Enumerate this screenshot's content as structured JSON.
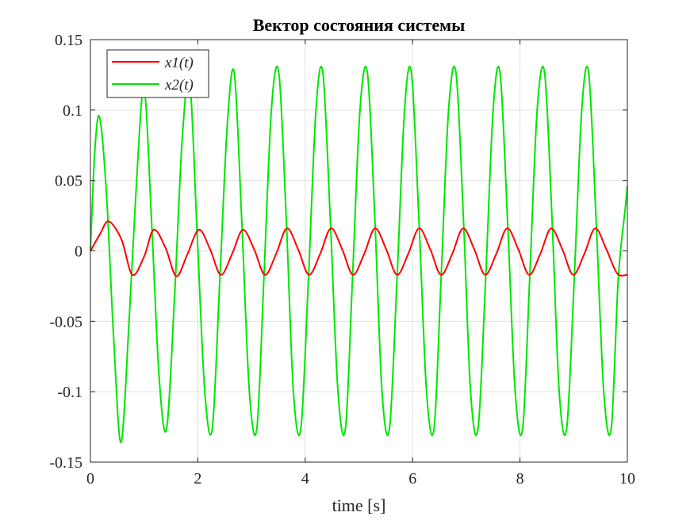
{
  "chart_data": {
    "type": "line",
    "title": "Вектор состояния системы",
    "xlabel": "time [s]",
    "ylabel": "",
    "xlim": [
      0,
      10
    ],
    "ylim": [
      -0.15,
      0.15
    ],
    "xticks": [
      0,
      2,
      4,
      6,
      8,
      10
    ],
    "xtick_labels": [
      "0",
      "2",
      "4",
      "6",
      "8",
      "10"
    ],
    "yticks": [
      -0.15,
      -0.1,
      -0.05,
      0,
      0.05,
      0.1,
      0.15
    ],
    "ytick_labels": [
      "-0.15",
      "-0.1",
      "-0.05",
      "0",
      "0.05",
      "0.1",
      "0.15"
    ],
    "grid": true,
    "legend": "top-left",
    "series": [
      {
        "name": "x1(t)",
        "color": "#ff0000",
        "x": [
          0,
          0.18,
          0.34,
          0.58,
          0.78,
          1.0,
          1.18,
          1.4,
          1.6,
          1.8,
          2.02,
          2.23,
          2.43,
          2.64,
          2.84,
          3.05,
          3.25,
          3.46,
          3.66,
          3.87,
          4.07,
          4.28,
          4.48,
          4.69,
          4.89,
          5.1,
          5.3,
          5.51,
          5.71,
          5.92,
          6.12,
          6.33,
          6.53,
          6.74,
          6.94,
          7.15,
          7.35,
          7.56,
          7.76,
          7.97,
          8.17,
          8.38,
          8.58,
          8.79,
          8.99,
          9.2,
          9.4,
          9.61,
          9.81,
          10.0
        ],
        "y": [
          0,
          0.012,
          0.021,
          0.008,
          -0.017,
          -0.004,
          0.015,
          0.002,
          -0.018,
          -0.003,
          0.015,
          0.001,
          -0.017,
          -0.002,
          0.015,
          0.001,
          -0.017,
          -0.002,
          0.016,
          0.001,
          -0.017,
          -0.002,
          0.016,
          0.001,
          -0.017,
          -0.002,
          0.016,
          0.001,
          -0.017,
          -0.002,
          0.016,
          0.001,
          -0.017,
          -0.002,
          0.016,
          0.001,
          -0.017,
          -0.002,
          0.016,
          0.001,
          -0.017,
          -0.002,
          0.016,
          0.001,
          -0.017,
          -0.002,
          0.016,
          0.001,
          -0.016,
          -0.017
        ]
      },
      {
        "name": "x2(t)",
        "color": "#00e600",
        "x": [
          0,
          0.08,
          0.17,
          0.3,
          0.43,
          0.57,
          0.72,
          0.86,
          1.0,
          1.14,
          1.28,
          1.42,
          1.57,
          1.71,
          1.85,
          1.99,
          2.13,
          2.27,
          2.41,
          2.55,
          2.68,
          2.82,
          2.96,
          3.1,
          3.23,
          3.37,
          3.51,
          3.65,
          3.78,
          3.92,
          4.06,
          4.2,
          4.33,
          4.47,
          4.61,
          4.75,
          4.88,
          5.02,
          5.16,
          5.3,
          5.43,
          5.57,
          5.71,
          5.85,
          5.98,
          6.12,
          6.26,
          6.4,
          6.53,
          6.67,
          6.81,
          6.95,
          7.08,
          7.22,
          7.36,
          7.5,
          7.63,
          7.77,
          7.91,
          8.05,
          8.18,
          8.32,
          8.46,
          8.6,
          8.73,
          8.87,
          9.01,
          9.15,
          9.28,
          9.42,
          9.56,
          9.7,
          9.83,
          9.96,
          10.0
        ],
        "y": [
          0,
          0.07,
          0.095,
          0.04,
          -0.06,
          -0.136,
          -0.05,
          0.05,
          0.115,
          0.02,
          -0.09,
          -0.126,
          -0.03,
          0.08,
          0.12,
          0.01,
          -0.1,
          -0.126,
          -0.02,
          0.09,
          0.126,
          0.02,
          -0.1,
          -0.126,
          -0.02,
          0.1,
          0.126,
          0.02,
          -0.1,
          -0.126,
          -0.02,
          0.1,
          0.126,
          0.02,
          -0.1,
          -0.126,
          -0.02,
          0.1,
          0.126,
          0.02,
          -0.1,
          -0.126,
          -0.02,
          0.1,
          0.126,
          0.02,
          -0.1,
          -0.126,
          -0.02,
          0.1,
          0.126,
          0.02,
          -0.1,
          -0.126,
          -0.02,
          0.1,
          0.126,
          0.02,
          -0.1,
          -0.126,
          -0.02,
          0.1,
          0.126,
          0.02,
          -0.1,
          -0.126,
          -0.02,
          0.1,
          0.126,
          0.02,
          -0.1,
          -0.126,
          -0.02,
          0.03,
          0.046
        ]
      }
    ]
  }
}
